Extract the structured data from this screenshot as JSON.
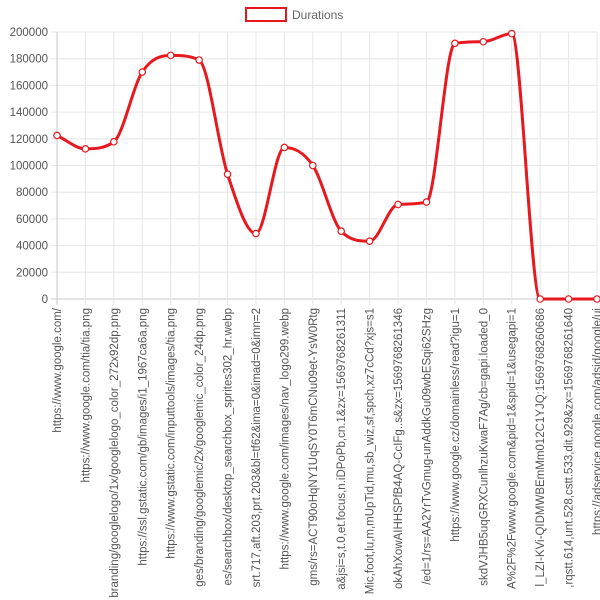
{
  "chart_data": {
    "type": "line",
    "legend": {
      "label": "Durations",
      "position": "top-center"
    },
    "colors": {
      "line": "#e8191e",
      "point_fill": "#ffffff",
      "grid": "#e6e6e6",
      "axis": "#c8c8c8"
    },
    "grid": true,
    "ylim": [
      0,
      200000
    ],
    "yticks": [
      "0",
      "20000",
      "40000",
      "60000",
      "80000",
      "100000",
      "120000",
      "140000",
      "160000",
      "180000",
      "200000"
    ],
    "categories": [
      "https://www.google.com/",
      "https://www.google.com/tia/tia.png",
      "branding/googlelogo/1x/googlelogo_color_272x92dp.png",
      "https://ssl.gstatic.com/gb/images/i1_1967ca6a.png",
      "https://www.gstatic.com/inputtools/images/tia.png",
      "ges/branding/googlemic/2x/googlemic_color_24dp.png",
      "es/searchbox/desktop_searchbox_sprites302_hr.webp",
      "srt.717,aft.203,prt.203&bl=tf62&ima=0&imad=0&imn=2",
      "https://www.google.com/images/nav_logo299.webp",
      "gms/rs=ACT90oHqNY1UqSY0T6mCNu09et-YsW0Rtg",
      "a&jsi=s,t.0,et.focus,n.iDPoPb,cn.1&zx=1569768261311",
      "Mic,foot,lu,m,mUpTid,mu,sb_wiz,sf,spch,xz7cCd?xjs=s1",
      "okAhXowAIHHSPfB4AQ-CcIFg..s&zx=1569768261346",
      "/ed=1/rs=AA2YrTvGmug-unAddkGu09wbESqi62SHzg",
      "https://www.google.cz/domainless/read?igu=1",
      "skdVJHB5uqGRXCunlhzuKwaF7Ag/cb=gapi.loaded_0",
      "A%2F%2Fwww.google.com&pid=1&spid=1&usegapi=1",
      "l_LZI-KVi-QIDMWBEmMm012C1YJQ:1569768260686",
      ",rqstt.614,unt.528,cstt.533,dit.929&zx=1569768261640",
      "https://adservice.google.com/adsid/google/ui"
    ],
    "series": [
      {
        "name": "Durations",
        "values": [
          122500,
          112500,
          117800,
          170000,
          182500,
          179000,
          93500,
          49000,
          113500,
          100000,
          50800,
          43300,
          70800,
          72600,
          191500,
          192700,
          198800,
          0,
          0,
          0
        ]
      }
    ]
  }
}
